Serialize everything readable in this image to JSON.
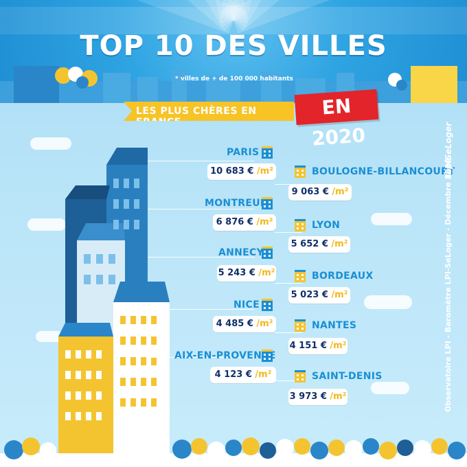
{
  "title": "TOP 10 DES VILLES",
  "subtitle": "* villes de + de 100 000 habitants",
  "banner": {
    "label": "LES PLUS CHÈRES EN FRANCE",
    "year": "EN 2020"
  },
  "colors": {
    "sky_top": "#2fa4e2",
    "city_blue": "#1a8fd4",
    "price_text": "#0f2f6a",
    "accent_yellow": "#f7c325",
    "accent_red": "#e3242b"
  },
  "unit": "/m²",
  "cities": [
    {
      "name": "PARIS",
      "price": "10 683 €"
    },
    {
      "name": "BOULOGNE-BILLANCOURT",
      "price": "9 063 €"
    },
    {
      "name": "MONTREUIL",
      "price": "6 876 €"
    },
    {
      "name": "LYON",
      "price": "5 652 €"
    },
    {
      "name": "ANNECY",
      "price": "5 243 €"
    },
    {
      "name": "BORDEAUX",
      "price": "5 023 €"
    },
    {
      "name": "NICE",
      "price": "4 485 €"
    },
    {
      "name": "NANTES",
      "price": "4 151 €"
    },
    {
      "name": "AIX-EN-PROVENCE",
      "price": "4 123 €"
    },
    {
      "name": "SAINT-DENIS",
      "price": "3 973 €"
    }
  ],
  "hashtag": "#LpiSeLoger",
  "credit": "Observatoire LPI - Baromètre LPI-SeLoger - Décembre 2020"
}
